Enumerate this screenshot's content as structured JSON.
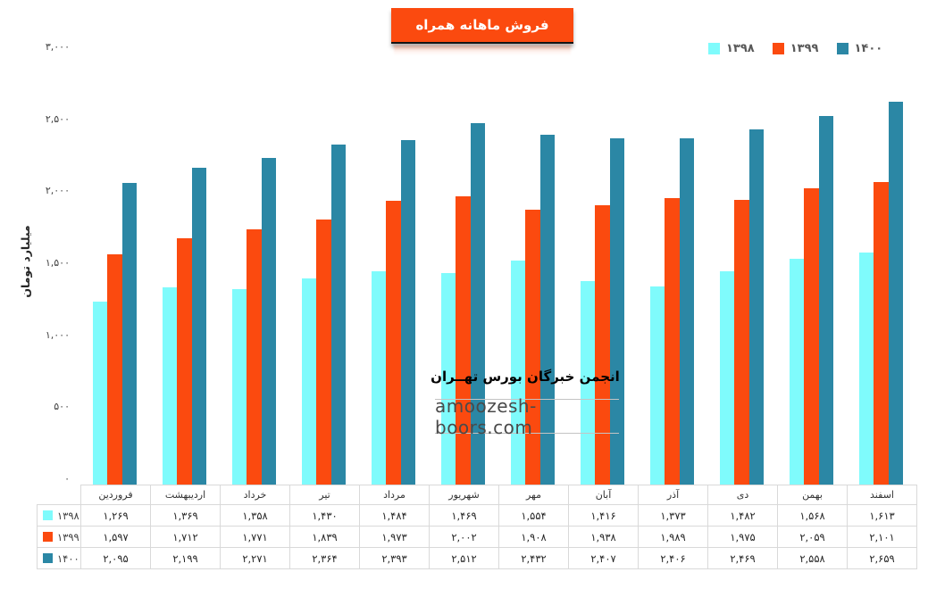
{
  "title": "فروش ماهانه همراه",
  "watermark": {
    "line1": "انجمن خبرگان بورس تهــران",
    "line2": "amoozesh-boors.com"
  },
  "colors": {
    "title_background": "#FB4A0F",
    "series_1398": "#7FFBFC",
    "series_1399": "#FB4A0F",
    "series_1400": "#2B87A5",
    "table_border": "#D9D9D9"
  },
  "chart_data": {
    "type": "bar",
    "title": "فروش ماهانه همراه",
    "xlabel": "",
    "ylabel": "میلیارد تومان",
    "ylim": [
      0,
      3000
    ],
    "grid": false,
    "legend_position": "top-right",
    "y_ticks": [
      {
        "value": 0,
        "label": "۰"
      },
      {
        "value": 500,
        "label": "۵۰۰"
      },
      {
        "value": 1000,
        "label": "۱,۰۰۰"
      },
      {
        "value": 1500,
        "label": "۱,۵۰۰"
      },
      {
        "value": 2000,
        "label": "۲,۰۰۰"
      },
      {
        "value": 2500,
        "label": "۲,۵۰۰"
      },
      {
        "value": 3000,
        "label": "۳,۰۰۰"
      }
    ],
    "categories": [
      {
        "label": "فروردین",
        "slug": "farvardin"
      },
      {
        "label": "اردیبهشت",
        "slug": "ordibehesht"
      },
      {
        "label": "خرداد",
        "slug": "khordad"
      },
      {
        "label": "تیر",
        "slug": "tir"
      },
      {
        "label": "مرداد",
        "slug": "mordad"
      },
      {
        "label": "شهریور",
        "slug": "shahrivar"
      },
      {
        "label": "مهر",
        "slug": "mehr"
      },
      {
        "label": "آبان",
        "slug": "aban"
      },
      {
        "label": "آذر",
        "slug": "azar"
      },
      {
        "label": "دی",
        "slug": "dey"
      },
      {
        "label": "بهمن",
        "slug": "bahman"
      },
      {
        "label": "اسفند",
        "slug": "esfand"
      }
    ],
    "series": [
      {
        "name": "۱۳۹۸",
        "slug": "1398",
        "color": "#7FFBFC",
        "values": [
          1269,
          1369,
          1358,
          1430,
          1484,
          1469,
          1554,
          1416,
          1373,
          1482,
          1568,
          1613
        ],
        "display": [
          "۱,۲۶۹",
          "۱,۳۶۹",
          "۱,۳۵۸",
          "۱,۴۳۰",
          "۱,۴۸۴",
          "۱,۴۶۹",
          "۱,۵۵۴",
          "۱,۴۱۶",
          "۱,۳۷۳",
          "۱,۴۸۲",
          "۱,۵۶۸",
          "۱,۶۱۳"
        ]
      },
      {
        "name": "۱۳۹۹",
        "slug": "1399",
        "color": "#FB4A0F",
        "values": [
          1597,
          1712,
          1771,
          1839,
          1973,
          2002,
          1908,
          1938,
          1989,
          1975,
          2059,
          2101
        ],
        "display": [
          "۱,۵۹۷",
          "۱,۷۱۲",
          "۱,۷۷۱",
          "۱,۸۳۹",
          "۱,۹۷۳",
          "۲,۰۰۲",
          "۱,۹۰۸",
          "۱,۹۳۸",
          "۱,۹۸۹",
          "۱,۹۷۵",
          "۲,۰۵۹",
          "۲,۱۰۱"
        ]
      },
      {
        "name": "۱۴۰۰",
        "slug": "1400",
        "color": "#2B87A5",
        "values": [
          2095,
          2199,
          2271,
          2364,
          2393,
          2512,
          2432,
          2407,
          2406,
          2469,
          2558,
          2659
        ],
        "display": [
          "۲,۰۹۵",
          "۲,۱۹۹",
          "۲,۲۷۱",
          "۲,۳۶۴",
          "۲,۳۹۳",
          "۲,۵۱۲",
          "۲,۴۳۲",
          "۲,۴۰۷",
          "۲,۴۰۶",
          "۲,۴۶۹",
          "۲,۵۵۸",
          "۲,۶۵۹"
        ]
      }
    ]
  }
}
